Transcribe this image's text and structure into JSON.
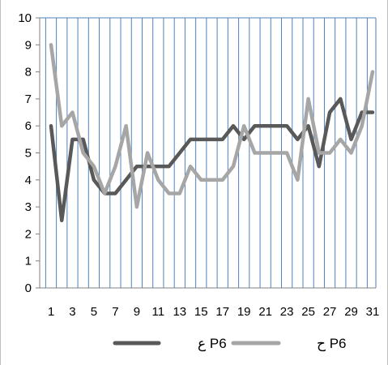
{
  "chart_data": {
    "type": "line",
    "title": "",
    "xlabel": "",
    "ylabel": "",
    "x": [
      1,
      2,
      3,
      4,
      5,
      6,
      7,
      8,
      9,
      10,
      11,
      12,
      13,
      14,
      15,
      16,
      17,
      18,
      19,
      20,
      21,
      22,
      23,
      24,
      25,
      26,
      27,
      28,
      29,
      30,
      31
    ],
    "x_tick_labels": [
      "1",
      "3",
      "5",
      "7",
      "9",
      "11",
      "13",
      "15",
      "17",
      "19",
      "21",
      "23",
      "25",
      "27",
      "29",
      "31"
    ],
    "y_tick_labels": [
      "0",
      "1",
      "2",
      "3",
      "4",
      "5",
      "6",
      "7",
      "8",
      "9",
      "10"
    ],
    "ylim": [
      0,
      10
    ],
    "xlim": [
      1,
      31
    ],
    "grid": "vertical lines on",
    "legend_position": "bottom",
    "series": [
      {
        "name": "P6 ع",
        "color": "#595959",
        "values": [
          6,
          2.5,
          5.5,
          5.5,
          4,
          3.5,
          3.5,
          4,
          4.5,
          4.5,
          4.5,
          4.5,
          5,
          5.5,
          5.5,
          5.5,
          5.5,
          6,
          5.5,
          6,
          6,
          6,
          6,
          5.5,
          6,
          4.5,
          6.5,
          7,
          5.5,
          6.5,
          6.5
        ]
      },
      {
        "name": "P6 ح",
        "color": "#a6a6a6",
        "values": [
          9,
          6,
          6.5,
          5,
          4.5,
          3.5,
          4.5,
          6,
          3,
          5,
          4,
          3.5,
          3.5,
          4.5,
          4,
          4,
          4,
          4.5,
          6,
          5,
          5,
          5,
          5,
          4,
          7,
          5,
          5,
          5.5,
          5,
          6,
          8
        ]
      }
    ],
    "colors": {
      "grid": "#4f81bd",
      "axis": "#808080",
      "border": "#bfbfbf"
    }
  }
}
